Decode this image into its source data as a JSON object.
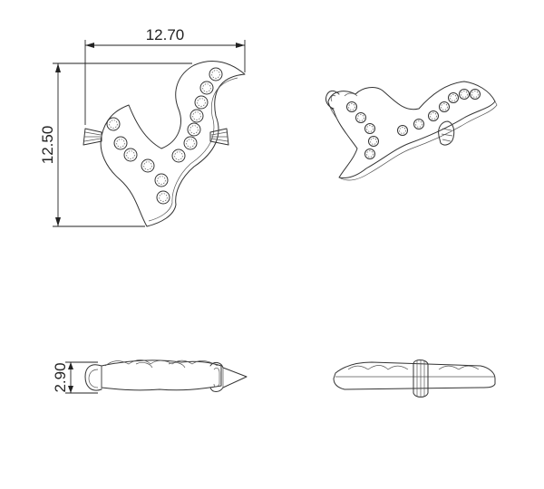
{
  "dimensions": {
    "width": "12.70",
    "height": "12.50",
    "thickness": "2.90"
  },
  "colors": {
    "line": "#333333",
    "dimension": "#222222",
    "background": "#ffffff"
  },
  "views": [
    "top-view",
    "isometric-view",
    "front-view",
    "side-view"
  ]
}
